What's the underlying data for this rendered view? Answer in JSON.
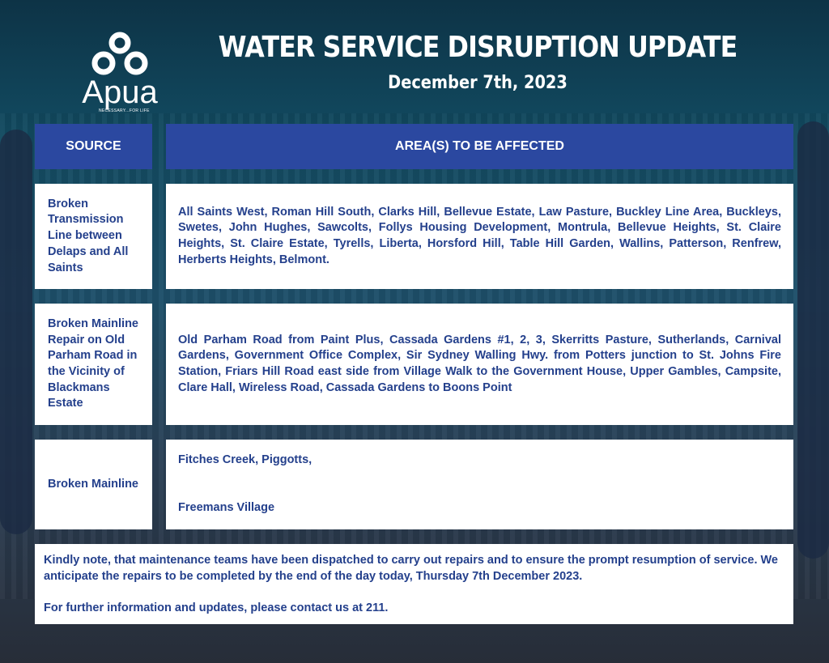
{
  "logo": {
    "name": "Apua",
    "tagline": "NECESSARY...FOR LIFE"
  },
  "title": "WATER SERVICE DISRUPTION UPDATE",
  "date": "December 7th, 2023",
  "table": {
    "headers": [
      "SOURCE",
      "AREA(S) TO BE AFFECTED"
    ],
    "rows": [
      {
        "source": "Broken Transmission Line between Delaps and All Saints",
        "areas": [
          "All Saints West, Roman Hill South, Clarks Hill, Bellevue Estate, Law Pasture, Buckley Line Area, Buckleys, Swetes, John Hughes, Sawcolts, Follys Housing Development, Montrula, Bellevue Heights, St. Claire Heights, St. Claire Estate, Tyrells, Liberta, Horsford Hill, Table Hill Garden, Wallins, Patterson, Renfrew, Herberts Heights, Belmont."
        ]
      },
      {
        "source": "Broken Mainline Repair on Old Parham Road in the Vicinity of Blackmans Estate",
        "areas": [
          "Old Parham Road from Paint Plus, Cassada Gardens #1, 2, 3, Skerritts Pasture, Sutherlands, Carnival Gardens, Government Office Complex, Sir Sydney Walling Hwy. from Potters junction to St. Johns Fire Station, Friars Hill Road east side from Village Walk to the Government House, Upper Gambles, Campsite, Clare Hall, Wireless Road, Cassada Gardens to Boons Point"
        ]
      },
      {
        "source": "Broken Mainline",
        "areas": [
          "Fitches Creek, Piggotts,",
          "Freemans Village"
        ]
      }
    ]
  },
  "note": {
    "line1": "Kindly note, that maintenance teams have been dispatched to carry out repairs and to ensure the prompt resumption of service.  We anticipate the repairs to be completed by the end of the day today, Thursday 7th December 2023.",
    "line2": "For further information and updates, please contact us at 211."
  },
  "colors": {
    "header_blue": "#2b48a0",
    "text_blue": "#24408c"
  }
}
